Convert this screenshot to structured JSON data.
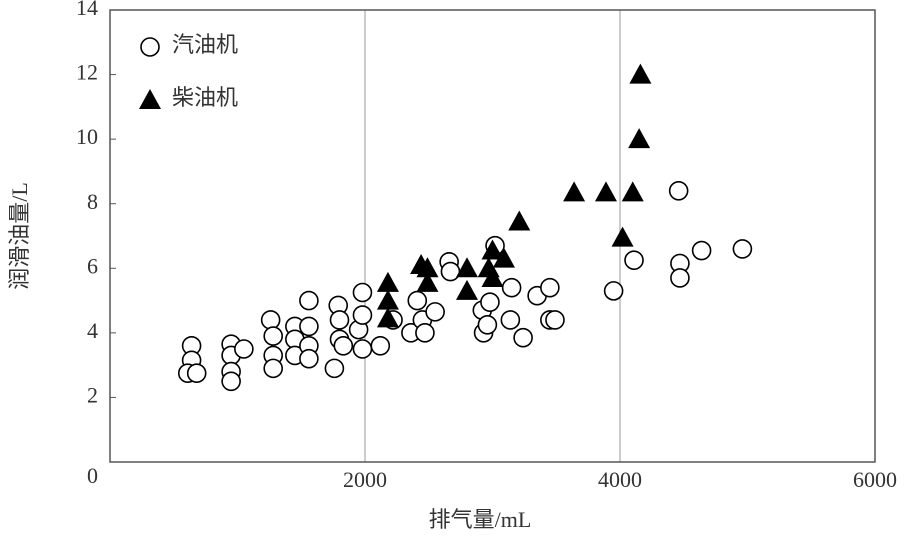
{
  "chart_data": {
    "type": "scatter",
    "x_label": "排气量/mL",
    "y_label": "润滑油量/L",
    "xlim": [
      0,
      6000
    ],
    "ylim": [
      0,
      14
    ],
    "xticks": [
      2000,
      4000,
      6000
    ],
    "yticks": [
      0,
      2,
      4,
      6,
      8,
      10,
      12,
      14
    ],
    "grid": "x",
    "legend": "top-left",
    "series": [
      {
        "name": "汽油机",
        "color": "#000000",
        "marker": "circle",
        "x": [
          640,
          640,
          610,
          680,
          950,
          950,
          950,
          950,
          1050,
          1260,
          1280,
          1280,
          1280,
          1450,
          1450,
          1450,
          1560,
          1560,
          1560,
          1560,
          1760,
          1790,
          1800,
          1800,
          1830,
          1950,
          1980,
          1980,
          1980,
          2120,
          2220,
          2360,
          2410,
          2450,
          2470,
          2550,
          2660,
          2670,
          2920,
          2930,
          2960,
          2980,
          3020,
          3140,
          3150,
          3240,
          3350,
          3450,
          3450,
          3490,
          3950,
          4110,
          4460,
          4470,
          4470,
          4640,
          4960
        ],
        "values": [
          3.6,
          3.15,
          2.75,
          2.75,
          3.65,
          3.3,
          2.8,
          2.5,
          3.5,
          4.4,
          3.9,
          3.3,
          2.9,
          4.2,
          3.8,
          3.3,
          5.0,
          4.2,
          3.6,
          3.2,
          2.9,
          4.85,
          4.4,
          3.8,
          3.6,
          4.1,
          5.25,
          4.55,
          3.5,
          3.6,
          4.4,
          4.0,
          5.0,
          4.4,
          4.0,
          4.65,
          6.2,
          5.9,
          4.7,
          4.0,
          4.25,
          4.95,
          6.7,
          4.4,
          5.4,
          3.85,
          5.15,
          5.4,
          4.4,
          4.4,
          5.3,
          6.25,
          8.4,
          6.15,
          5.7,
          6.55,
          6.6
        ]
      },
      {
        "name": "柴油机",
        "color": "#000000",
        "marker": "triangle",
        "x": [
          2180,
          2180,
          2180,
          2440,
          2490,
          2490,
          2800,
          2800,
          3000,
          2970,
          3000,
          3090,
          3210,
          3640,
          3890,
          4020,
          4100,
          4150,
          4160
        ],
        "values": [
          5.55,
          5.0,
          4.45,
          6.1,
          6.0,
          5.55,
          6.0,
          5.3,
          6.55,
          6.0,
          5.7,
          6.3,
          7.45,
          8.35,
          8.35,
          6.95,
          8.35,
          10.0,
          12.0
        ]
      }
    ]
  }
}
